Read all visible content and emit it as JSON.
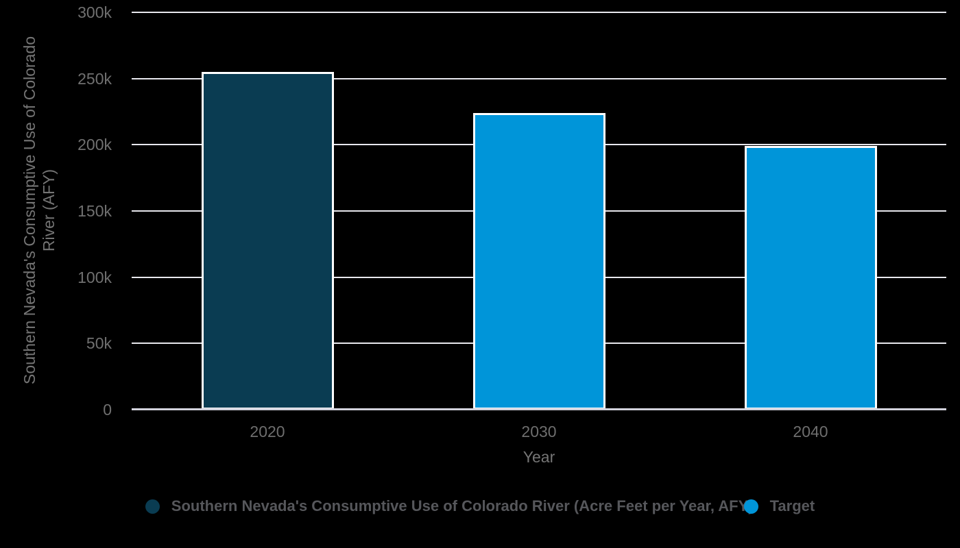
{
  "chart_data": {
    "type": "bar",
    "title": "",
    "categories": [
      "2020",
      "2030",
      "2040"
    ],
    "series": [
      {
        "name": "Southern Nevada's Consumptive Use of Colorado River (Acre Feet per Year, AFY)",
        "color": "#0a3c52",
        "values": [
          255000,
          null,
          null
        ]
      },
      {
        "name": "Target",
        "color": "#0095d9",
        "values": [
          null,
          224000,
          199000
        ]
      }
    ],
    "xlabel": "Year",
    "ylabel": "Southern Nevada's Consumptive Use of Colorado River (AFY)",
    "ylabel_lines": [
      "Southern Nevada's Consumptive Use of Colorado",
      "River (AFY)"
    ],
    "ylim": [
      0,
      300000
    ],
    "ytick_interval": 50000,
    "yticks": [
      {
        "value": 0,
        "label": "0"
      },
      {
        "value": 50000,
        "label": "50k"
      },
      {
        "value": 100000,
        "label": "100k"
      },
      {
        "value": 150000,
        "label": "150k"
      },
      {
        "value": 200000,
        "label": "200k"
      },
      {
        "value": 250000,
        "label": "250k"
      },
      {
        "value": 300000,
        "label": "300k"
      }
    ],
    "grid": true,
    "legend_position": "bottom"
  },
  "colors": {
    "background": "#000000",
    "gridline": "#e8e8ee",
    "axis_line": "#d2d2dc",
    "bar_stroke": "#ffffff",
    "tick_label": "#707070",
    "axis_title": "#757575",
    "legend_text": "#56575b"
  }
}
